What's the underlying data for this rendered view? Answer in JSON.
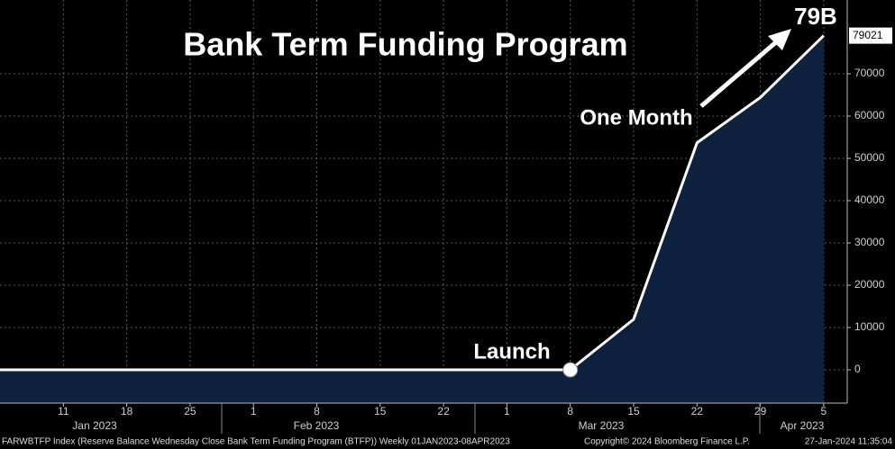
{
  "chart_data": {
    "type": "area",
    "title": "Bank Term Funding Program",
    "annotations": {
      "launch": "Launch",
      "one_month": "One Month",
      "total": "79B"
    },
    "categories": [
      null,
      "11",
      "18",
      "25",
      "1",
      "8",
      "15",
      "22",
      "1",
      "8",
      "15",
      "22",
      "29",
      "5"
    ],
    "months": [
      "Jan 2023",
      "Feb 2023",
      "Mar 2023",
      "Apr 2023"
    ],
    "values": [
      0,
      0,
      0,
      0,
      0,
      0,
      0,
      0,
      0,
      0,
      11943,
      53669,
      64403,
      79021
    ],
    "line_color": "#ffffff",
    "fill_color": "#0e213f",
    "ylim": [
      -7872,
      87447
    ],
    "yticks": [
      0,
      10000,
      20000,
      30000,
      40000,
      50000,
      60000,
      70000
    ],
    "grid": true,
    "footer": {
      "source": "FARWBTFP Index (Reserve Balance Wednesday Close Bank Term Funding Program (BTFP))  Weekly 01JAN2023-08APR2023",
      "copyright": "Copyright© 2024 Bloomberg Finance L.P.",
      "timestamp": "27-Jan-2024 11:35:04"
    }
  }
}
